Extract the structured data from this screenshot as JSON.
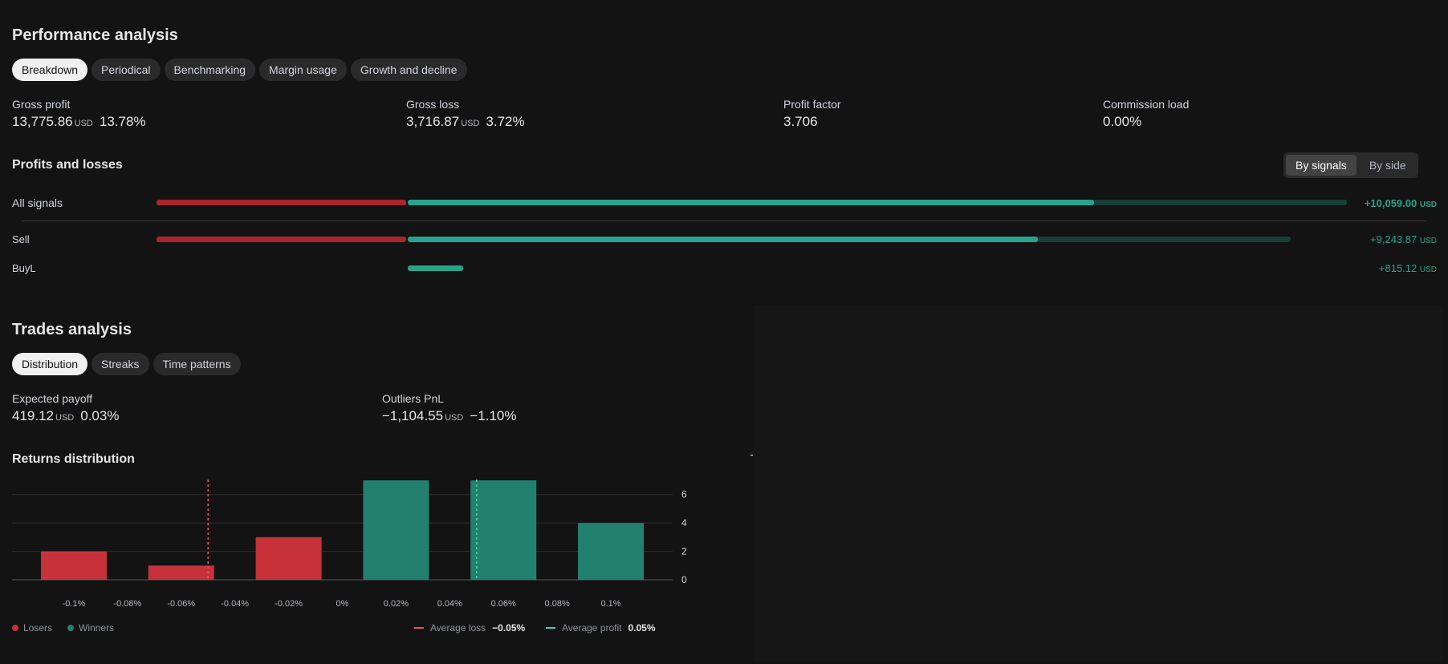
{
  "performance": {
    "title": "Performance analysis",
    "tabs": [
      "Breakdown",
      "Periodical",
      "Benchmarking",
      "Margin usage",
      "Growth and decline"
    ],
    "stats": [
      {
        "label": "Gross profit",
        "value": "13,775.86",
        "currency": "USD",
        "pct": "13.78%"
      },
      {
        "label": "Gross loss",
        "value": "3,716.87",
        "currency": "USD",
        "pct": "3.72%"
      },
      {
        "label": "Profit factor",
        "value": "3.706"
      },
      {
        "label": "Commission load",
        "value": "0.00%"
      }
    ]
  },
  "pnl": {
    "title": "Profits and losses",
    "toggle": [
      "By signals",
      "By side"
    ],
    "rows": [
      {
        "label": "All signals",
        "value": "+10,059.00",
        "currency": "USD"
      },
      {
        "label": "Sell",
        "value": "+9,243.87",
        "currency": "USD"
      },
      {
        "label": "BuyL",
        "value": "+815.12",
        "currency": "USD"
      }
    ]
  },
  "trades": {
    "title": "Trades analysis",
    "tabs": [
      "Distribution",
      "Streaks",
      "Time patterns"
    ],
    "stats": [
      {
        "label": "Expected payoff",
        "value": "419.12",
        "currency": "USD",
        "pct": "0.03%"
      },
      {
        "label": "Outliers PnL",
        "value": "−1,104.55",
        "currency": "USD",
        "pct": "−1.10%"
      }
    ]
  },
  "returns": {
    "title": "Returns distribution",
    "legend": {
      "losers": "Losers",
      "winners": "Winners",
      "avg_loss_label": "Average loss",
      "avg_loss_value": "−0.05%",
      "avg_profit_label": "Average profit",
      "avg_profit_value": "0.05%"
    }
  },
  "colors": {
    "loss": "#c7323a",
    "profit": "#22806e",
    "avg_loss": "#f05060",
    "avg_profit": "#3fd1b0"
  },
  "chart_data": {
    "type": "bar",
    "categories": [
      "-0.1%",
      "-0.06%",
      "-0.02%",
      "0.02%",
      "0.06%",
      "0.1%"
    ],
    "values": [
      2,
      1,
      3,
      7,
      7,
      4
    ],
    "series_kind": [
      "loss",
      "loss",
      "loss",
      "profit",
      "profit",
      "profit"
    ],
    "x_ticks": [
      "-0.1%",
      "-0.08%",
      "-0.06%",
      "-0.04%",
      "-0.02%",
      "0%",
      "0.02%",
      "0.04%",
      "0.06%",
      "0.08%",
      "0.1%"
    ],
    "x_tick_values": [
      -0.1,
      -0.08,
      -0.06,
      -0.04,
      -0.02,
      0,
      0.02,
      0.04,
      0.06,
      0.08,
      0.1
    ],
    "bar_centers": [
      -0.1,
      -0.06,
      -0.02,
      0.02,
      0.06,
      0.1
    ],
    "y_ticks": [
      0,
      2,
      4,
      6
    ],
    "ylim": [
      0,
      7
    ],
    "avg_loss": -0.05,
    "avg_profit": 0.05,
    "grid": true
  }
}
